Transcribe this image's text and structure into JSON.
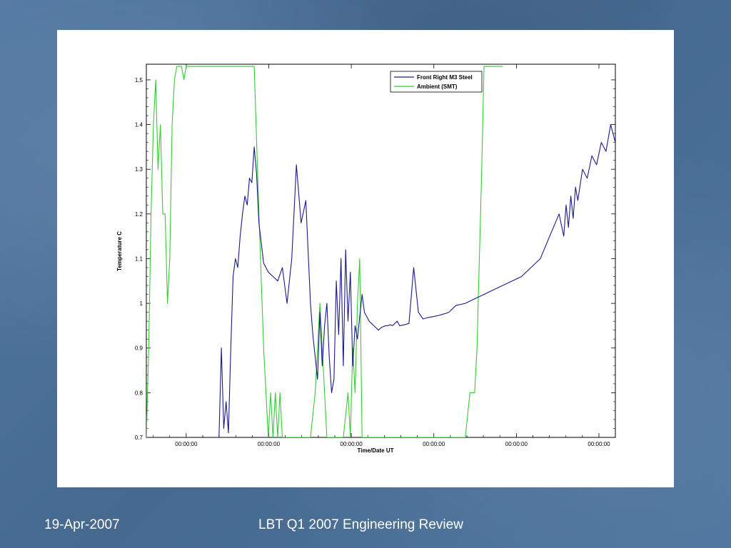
{
  "footer": {
    "date": "19-Apr-2007",
    "title": "LBT Q1 2007 Engineering Review"
  },
  "colors": {
    "background": "#4a6f98",
    "series_1": "#1a1a8c",
    "series_2": "#33cc33"
  },
  "chart_data": {
    "type": "line",
    "xlabel": "Time/Date UT",
    "ylabel": "Temperature C",
    "x_tick_labels": [
      "00:00:00",
      "00:00:00",
      "00:00:00",
      "00:00:00",
      "00:00:00",
      "00:00:00"
    ],
    "y_ticks": [
      0.7,
      0.8,
      0.9,
      1,
      1.1,
      1.2,
      1.3,
      1.4,
      1.5
    ],
    "y_tick_labels": [
      "0.7",
      "0.8",
      "0.9",
      "1",
      "1.1",
      "1.2",
      "1.3",
      "1.4",
      "1.5"
    ],
    "ylim": [
      0.7,
      1.535
    ],
    "xlim": [
      0,
      100
    ],
    "legend_position": "top-right",
    "grid": false,
    "series": [
      {
        "name": "Front Right M3 Steel",
        "color": "#1a1a8c",
        "x": [
          15.5,
          16.0,
          16.5,
          17.0,
          17.5,
          18.0,
          18.5,
          19.0,
          19.5,
          20.0,
          20.5,
          21.0,
          21.5,
          22.0,
          22.5,
          23.0,
          23.5,
          24.0,
          25.0,
          26.0,
          27.0,
          28.0,
          29.0,
          30.0,
          31.0,
          32.0,
          33.0,
          34.0,
          35.0,
          35.5,
          36.0,
          36.5,
          37.0,
          37.5,
          38.0,
          38.5,
          39.0,
          39.5,
          40.0,
          40.5,
          41.0,
          41.5,
          42.0,
          42.5,
          43.0,
          43.5,
          44.0,
          44.5,
          45.0,
          45.5,
          46.0,
          46.5,
          47.0,
          47.5,
          48.0,
          48.5,
          49.0,
          49.5,
          50.0,
          50.5,
          51.0,
          51.5,
          52.0,
          52.5,
          53.0,
          53.5,
          54.0,
          55.0,
          56.0,
          57.0,
          58.0,
          59.0,
          60.0,
          61.0,
          62.0,
          63.0,
          64.0,
          64.5,
          65.0,
          65.5,
          66.0,
          68.0,
          70.0,
          72.0,
          74.0,
          76.0,
          78.0,
          80.0,
          82.0,
          84.0,
          86.0,
          88.0,
          89.0,
          89.5,
          90.0,
          90.5,
          91.0,
          91.5,
          92.0,
          93.0,
          94.0,
          95.0,
          96.0,
          97.0,
          98.0,
          99.0,
          100.0
        ],
        "y": [
          0.7,
          0.9,
          0.72,
          0.78,
          0.71,
          0.9,
          1.06,
          1.1,
          1.08,
          1.15,
          1.2,
          1.24,
          1.22,
          1.28,
          1.27,
          1.35,
          1.29,
          1.18,
          1.09,
          1.07,
          1.06,
          1.05,
          1.08,
          1.0,
          1.1,
          1.31,
          1.18,
          1.23,
          1.0,
          0.93,
          0.88,
          0.83,
          0.98,
          0.86,
          0.95,
          1.0,
          0.88,
          0.8,
          0.83,
          1.05,
          0.93,
          1.1,
          0.86,
          1.12,
          0.96,
          1.07,
          0.86,
          0.95,
          0.92,
          0.97,
          1.02,
          0.98,
          0.97,
          0.96,
          0.955,
          0.95,
          0.945,
          0.94,
          0.945,
          0.948,
          0.95,
          0.95,
          0.952,
          0.95,
          0.955,
          0.96,
          0.95,
          0.952,
          0.955,
          1.08,
          0.98,
          0.965,
          0.968,
          0.97,
          0.972,
          0.975,
          0.978,
          0.98,
          0.985,
          0.99,
          0.995,
          1.0,
          1.01,
          1.02,
          1.03,
          1.04,
          1.05,
          1.06,
          1.08,
          1.1,
          1.15,
          1.2,
          1.15,
          1.22,
          1.17,
          1.24,
          1.19,
          1.26,
          1.23,
          1.3,
          1.28,
          1.33,
          1.31,
          1.36,
          1.34,
          1.4,
          1.36
        ]
      },
      {
        "name": "Ambient (SMT)",
        "color": "#33cc33",
        "x": [
          0.0,
          0.5,
          1.0,
          1.5,
          2.0,
          2.5,
          3.0,
          3.5,
          4.0,
          4.5,
          5.0,
          5.5,
          6.0,
          6.5,
          7.0,
          7.5,
          8.0,
          8.5,
          9.0,
          9.5,
          10.0,
          10.5,
          11.0,
          11.5,
          12.0,
          12.5,
          13.0,
          13.5,
          14.0,
          20.0,
          21.0,
          22.0,
          23.0,
          24.0,
          25.0,
          26.0,
          26.5,
          27.0,
          27.5,
          28.0,
          28.5,
          29.0,
          29.5,
          30.0,
          31.0,
          32.0,
          33.0,
          34.0,
          35.0,
          36.0,
          37.0,
          38.0,
          38.5,
          39.0,
          39.5,
          40.0,
          41.0,
          42.0,
          43.0,
          43.5,
          44.0,
          44.5,
          45.0,
          45.5,
          46.0,
          46.5,
          47.0,
          47.5,
          48.0,
          68.0,
          69.0,
          70.0,
          70.5,
          71.0,
          71.5,
          72.0,
          72.5,
          73.0,
          73.5,
          74.0,
          74.5,
          75.0,
          75.5,
          76.0
        ],
        "y": [
          0.7,
          0.9,
          1.2,
          1.4,
          1.5,
          1.3,
          1.4,
          1.2,
          1.2,
          1.0,
          1.1,
          1.4,
          1.5,
          1.53,
          1.53,
          1.53,
          1.5,
          1.53,
          1.53,
          1.53,
          1.53,
          1.53,
          1.53,
          1.53,
          1.53,
          1.53,
          1.53,
          1.53,
          1.53,
          1.53,
          1.53,
          1.53,
          1.53,
          1.2,
          0.9,
          0.7,
          0.8,
          0.7,
          0.8,
          0.7,
          0.8,
          0.7,
          0.7,
          0.7,
          0.7,
          0.7,
          0.7,
          0.7,
          0.7,
          0.8,
          1.0,
          0.8,
          0.7,
          0.7,
          0.7,
          0.7,
          0.7,
          0.7,
          0.8,
          0.7,
          0.9,
          0.8,
          1.0,
          1.1,
          0.7,
          0.7,
          0.7,
          0.7,
          0.7,
          0.7,
          0.8,
          0.8,
          0.9,
          1.1,
          1.3,
          1.53,
          1.53,
          1.53,
          1.53,
          1.53,
          1.53,
          1.53,
          1.53,
          1.53
        ]
      }
    ]
  }
}
